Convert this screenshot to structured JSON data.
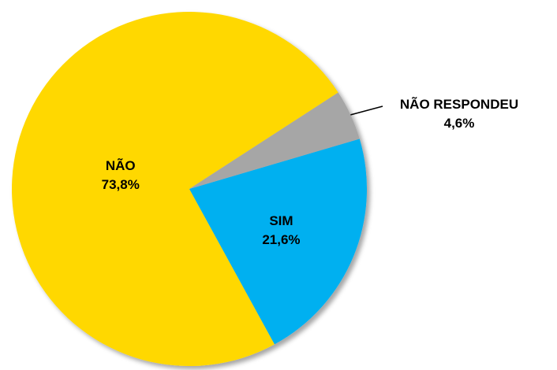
{
  "chart_data": {
    "type": "pie",
    "categories": [
      "NÃO",
      "SIM",
      "NÃO RESPONDEU"
    ],
    "values": [
      73.8,
      21.6,
      4.6
    ],
    "value_labels": [
      "73,8%",
      "21,6%",
      "4,6%"
    ],
    "colors": [
      "#FFD800",
      "#00B0F0",
      "#A6A6A6"
    ]
  }
}
